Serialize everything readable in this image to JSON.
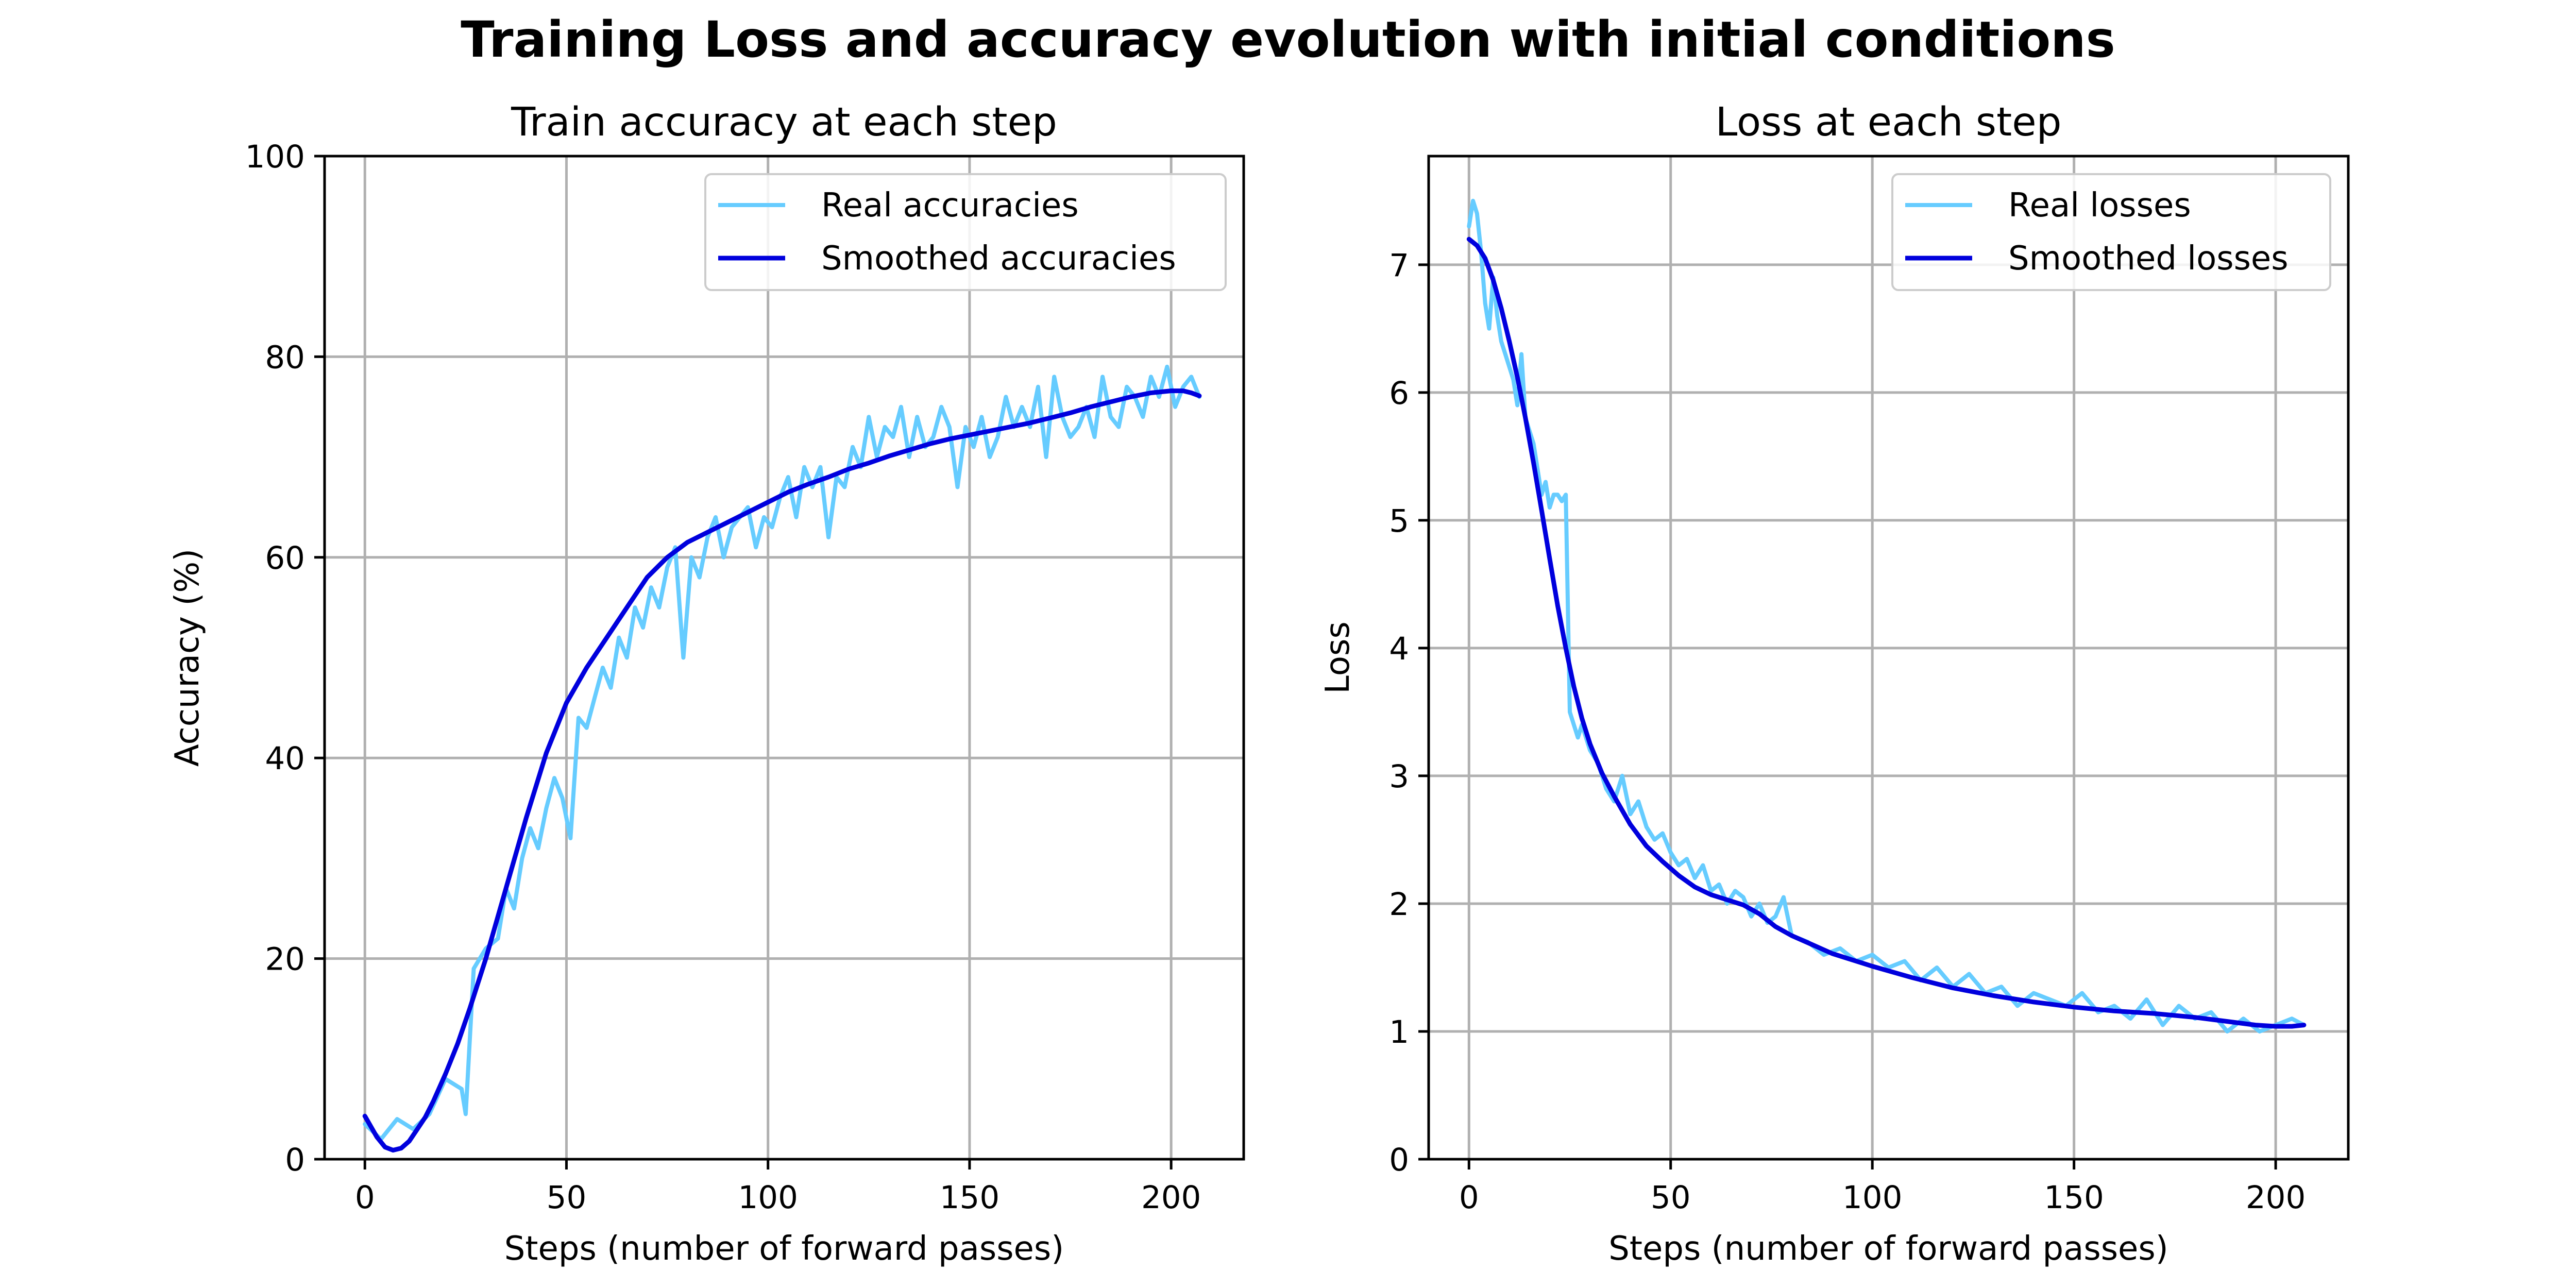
{
  "figure": {
    "suptitle": "Training Loss and accuracy evolution with initial conditions"
  },
  "chart_data": [
    {
      "type": "line",
      "title": "Train accuracy at each step",
      "xlabel": "Steps (number of forward passes)",
      "ylabel": "Accuracy (%)",
      "xlim": [
        -10,
        218
      ],
      "ylim": [
        0,
        100
      ],
      "xticks": [
        0,
        50,
        100,
        150,
        200
      ],
      "yticks": [
        0,
        20,
        40,
        60,
        80,
        100
      ],
      "grid": true,
      "legend_position": "upper-right",
      "series": [
        {
          "name": "Real accuracies",
          "color": "#66ccff",
          "x": [
            0,
            4,
            8,
            12,
            16,
            20,
            24,
            25,
            27,
            30,
            33,
            35,
            37,
            39,
            41,
            43,
            45,
            47,
            49,
            51,
            53,
            55,
            57,
            59,
            61,
            63,
            65,
            67,
            69,
            71,
            73,
            75,
            77,
            79,
            81,
            83,
            85,
            87,
            89,
            91,
            93,
            95,
            97,
            99,
            101,
            103,
            105,
            107,
            109,
            111,
            113,
            115,
            117,
            119,
            121,
            123,
            125,
            127,
            129,
            131,
            133,
            135,
            137,
            139,
            141,
            143,
            145,
            147,
            149,
            151,
            153,
            155,
            157,
            159,
            161,
            163,
            165,
            167,
            169,
            171,
            173,
            175,
            177,
            179,
            181,
            183,
            185,
            187,
            189,
            191,
            193,
            195,
            197,
            199,
            201,
            203,
            205,
            207
          ],
          "y": [
            3.5,
            2,
            4,
            3,
            4.5,
            8,
            7,
            4.5,
            19,
            21,
            22,
            27,
            25,
            30,
            33,
            31,
            35,
            38,
            36,
            32,
            44,
            43,
            46,
            49,
            47,
            52,
            50,
            55,
            53,
            57,
            55,
            59,
            61,
            50,
            60,
            58,
            62,
            64,
            60,
            63,
            64,
            65,
            61,
            64,
            63,
            66,
            68,
            64,
            69,
            67,
            69,
            62,
            68,
            67,
            71,
            69,
            74,
            70,
            73,
            72,
            75,
            70,
            74,
            71,
            72,
            75,
            73,
            67,
            73,
            71,
            74,
            70,
            72,
            76,
            73,
            75,
            73,
            77,
            70,
            78,
            74,
            72,
            73,
            75,
            72,
            78,
            74,
            73,
            77,
            76,
            74,
            78,
            76,
            79,
            75,
            77,
            78,
            76
          ]
        },
        {
          "name": "Smoothed accuracies",
          "color": "#0000dd",
          "x": [
            0,
            3,
            5,
            7,
            9,
            11,
            13,
            15,
            17,
            20,
            23,
            26,
            30,
            35,
            40,
            45,
            50,
            55,
            60,
            65,
            70,
            75,
            80,
            85,
            90,
            95,
            100,
            105,
            110,
            115,
            120,
            125,
            130,
            135,
            140,
            145,
            150,
            155,
            160,
            165,
            170,
            175,
            180,
            185,
            190,
            195,
            200,
            203,
            205,
            207
          ],
          "y": [
            4.3,
            2.2,
            1.2,
            0.9,
            1.1,
            1.8,
            3,
            4.2,
            5.8,
            8.5,
            11.5,
            15,
            20,
            27,
            34,
            40.5,
            45.5,
            49,
            52,
            55,
            58,
            60,
            61.5,
            62.5,
            63.5,
            64.5,
            65.5,
            66.5,
            67.3,
            68,
            68.8,
            69.4,
            70.1,
            70.7,
            71.3,
            71.8,
            72.2,
            72.6,
            73,
            73.4,
            73.9,
            74.4,
            75,
            75.5,
            76,
            76.4,
            76.6,
            76.6,
            76.4,
            76.1
          ]
        }
      ]
    },
    {
      "type": "line",
      "title": "Loss at each step",
      "xlabel": "Steps (number of forward passes)",
      "ylabel": "Loss",
      "xlim": [
        -10,
        218
      ],
      "ylim": [
        0,
        7.85
      ],
      "xticks": [
        0,
        50,
        100,
        150,
        200
      ],
      "yticks": [
        0,
        1,
        2,
        3,
        4,
        5,
        6,
        7
      ],
      "grid": true,
      "legend_position": "upper-right",
      "series": [
        {
          "name": "Real losses",
          "color": "#66ccff",
          "x": [
            0,
            1,
            2,
            3,
            4,
            5,
            6,
            7,
            8,
            9,
            10,
            11,
            12,
            13,
            14,
            15,
            16,
            17,
            18,
            19,
            20,
            21,
            22,
            23,
            24,
            25,
            26,
            27,
            28,
            30,
            32,
            34,
            36,
            38,
            40,
            42,
            44,
            46,
            48,
            50,
            52,
            54,
            56,
            58,
            60,
            62,
            64,
            66,
            68,
            70,
            72,
            74,
            76,
            78,
            80,
            84,
            88,
            92,
            96,
            100,
            104,
            108,
            112,
            116,
            120,
            124,
            128,
            132,
            136,
            140,
            144,
            148,
            152,
            156,
            160,
            164,
            168,
            172,
            176,
            180,
            184,
            188,
            192,
            196,
            200,
            204,
            207
          ],
          "y": [
            7.3,
            7.5,
            7.4,
            7.1,
            6.7,
            6.5,
            6.9,
            6.6,
            6.4,
            6.3,
            6.2,
            6.1,
            5.9,
            6.3,
            5.8,
            5.7,
            5.6,
            5.4,
            5.2,
            5.3,
            5.1,
            5.2,
            5.2,
            5.15,
            5.2,
            3.5,
            3.4,
            3.3,
            3.4,
            3.2,
            3.1,
            2.9,
            2.8,
            3.0,
            2.7,
            2.8,
            2.6,
            2.5,
            2.55,
            2.4,
            2.3,
            2.35,
            2.2,
            2.3,
            2.1,
            2.15,
            2.0,
            2.1,
            2.05,
            1.9,
            2.0,
            1.85,
            1.9,
            2.05,
            1.75,
            1.7,
            1.6,
            1.65,
            1.55,
            1.6,
            1.5,
            1.55,
            1.4,
            1.5,
            1.35,
            1.45,
            1.3,
            1.35,
            1.2,
            1.3,
            1.25,
            1.2,
            1.3,
            1.15,
            1.2,
            1.1,
            1.25,
            1.05,
            1.2,
            1.1,
            1.15,
            1.0,
            1.1,
            1.0,
            1.05,
            1.1,
            1.05
          ]
        },
        {
          "name": "Smoothed losses",
          "color": "#0000dd",
          "x": [
            0,
            2,
            4,
            6,
            8,
            10,
            12,
            14,
            16,
            18,
            20,
            22,
            24,
            26,
            28,
            30,
            33,
            36,
            40,
            44,
            48,
            52,
            56,
            60,
            64,
            68,
            72,
            76,
            80,
            85,
            90,
            95,
            100,
            110,
            120,
            130,
            140,
            150,
            160,
            170,
            180,
            190,
            195,
            200,
            204,
            207
          ],
          "y": [
            7.2,
            7.15,
            7.05,
            6.88,
            6.66,
            6.4,
            6.12,
            5.8,
            5.45,
            5.08,
            4.7,
            4.33,
            4.0,
            3.7,
            3.45,
            3.25,
            3.02,
            2.84,
            2.62,
            2.45,
            2.33,
            2.22,
            2.13,
            2.07,
            2.03,
            1.99,
            1.92,
            1.82,
            1.75,
            1.68,
            1.61,
            1.56,
            1.51,
            1.42,
            1.34,
            1.28,
            1.23,
            1.19,
            1.16,
            1.14,
            1.11,
            1.07,
            1.05,
            1.04,
            1.04,
            1.05
          ]
        }
      ]
    }
  ]
}
